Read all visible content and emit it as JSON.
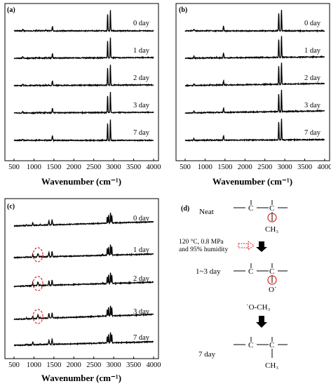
{
  "chart_data": [
    {
      "panel": "(a)",
      "type": "line",
      "title": "",
      "xlabel": "Wavenumber (cm⁻¹)",
      "xlim": [
        500,
        4000
      ],
      "xticks": [
        "500",
        "1000",
        "1500",
        "2000",
        "2500",
        "3000",
        "3500",
        "4000"
      ],
      "series": [
        {
          "name": "0 day",
          "values": []
        },
        {
          "name": "1 day",
          "values": []
        },
        {
          "name": "2 day",
          "values": []
        },
        {
          "name": "3 day",
          "values": []
        },
        {
          "name": "7 day",
          "values": []
        }
      ],
      "peaks": [
        {
          "x": 720,
          "h": 0.15
        },
        {
          "x": 1062,
          "h": 0.05
        },
        {
          "x": 1130,
          "h": 0.05
        },
        {
          "x": 1295,
          "h": 0.06
        },
        {
          "x": 1370,
          "h": 0.04
        },
        {
          "x": 1463,
          "h": 0.45
        },
        {
          "x": 2848,
          "h": 1.8
        },
        {
          "x": 2917,
          "h": 2.1
        }
      ]
    },
    {
      "panel": "(b)",
      "type": "line",
      "title": "",
      "xlabel": "Wavenumber (cm⁻¹)",
      "xlim": [
        500,
        4000
      ],
      "xticks": [
        "500",
        "1000",
        "1500",
        "2000",
        "2500",
        "3000",
        "3500",
        "4000"
      ],
      "series": [
        {
          "name": "0 day",
          "values": []
        },
        {
          "name": "1 day",
          "values": []
        },
        {
          "name": "2 day",
          "values": []
        },
        {
          "name": "3 day",
          "values": []
        },
        {
          "name": "7 day",
          "values": []
        }
      ],
      "peaks": [
        {
          "x": 720,
          "h": 0.18
        },
        {
          "x": 1062,
          "h": 0.05
        },
        {
          "x": 1130,
          "h": 0.05
        },
        {
          "x": 1295,
          "h": 0.06
        },
        {
          "x": 1463,
          "h": 0.45
        },
        {
          "x": 2848,
          "h": 1.9
        },
        {
          "x": 2917,
          "h": 2.2
        }
      ]
    },
    {
      "panel": "(c)",
      "type": "line",
      "title": "",
      "xlabel": "Wavenumber (cm⁻¹)",
      "xlim": [
        500,
        4000
      ],
      "xticks": [
        "500",
        "1000",
        "1500",
        "2000",
        "2500",
        "3000",
        "3500",
        "4000"
      ],
      "series": [
        {
          "name": "0 day",
          "values": []
        },
        {
          "name": "1 day",
          "values": []
        },
        {
          "name": "2 day",
          "values": []
        },
        {
          "name": "3 day",
          "values": []
        },
        {
          "name": "7 day",
          "values": []
        }
      ],
      "peaks": [
        {
          "x": 810,
          "h": 0.1
        },
        {
          "x": 970,
          "h": 0.35
        },
        {
          "x": 1155,
          "h": 0.1
        },
        {
          "x": 1375,
          "h": 0.55
        },
        {
          "x": 1455,
          "h": 0.6
        },
        {
          "x": 2725,
          "h": 0.1
        },
        {
          "x": 2838,
          "h": 0.8
        },
        {
          "x": 2870,
          "h": 1.0
        },
        {
          "x": 2920,
          "h": 1.3
        },
        {
          "x": 2952,
          "h": 1.0
        }
      ],
      "highlight_x": 1100
    }
  ],
  "scheme": {
    "panel_label": "(d)",
    "neat": "Neat",
    "ch3": "CH₃",
    "condition_line1": "120 °C, 0.8 MPa",
    "condition_line2": "and 95% humidity",
    "day_1_3": "1~3 day",
    "o_dot": "O˙",
    "o_ch3": "˙O-CH₃",
    "day_7": "7 day",
    "ch3_final": "CH₃",
    "c": "C",
    "accent": "#e02020"
  }
}
